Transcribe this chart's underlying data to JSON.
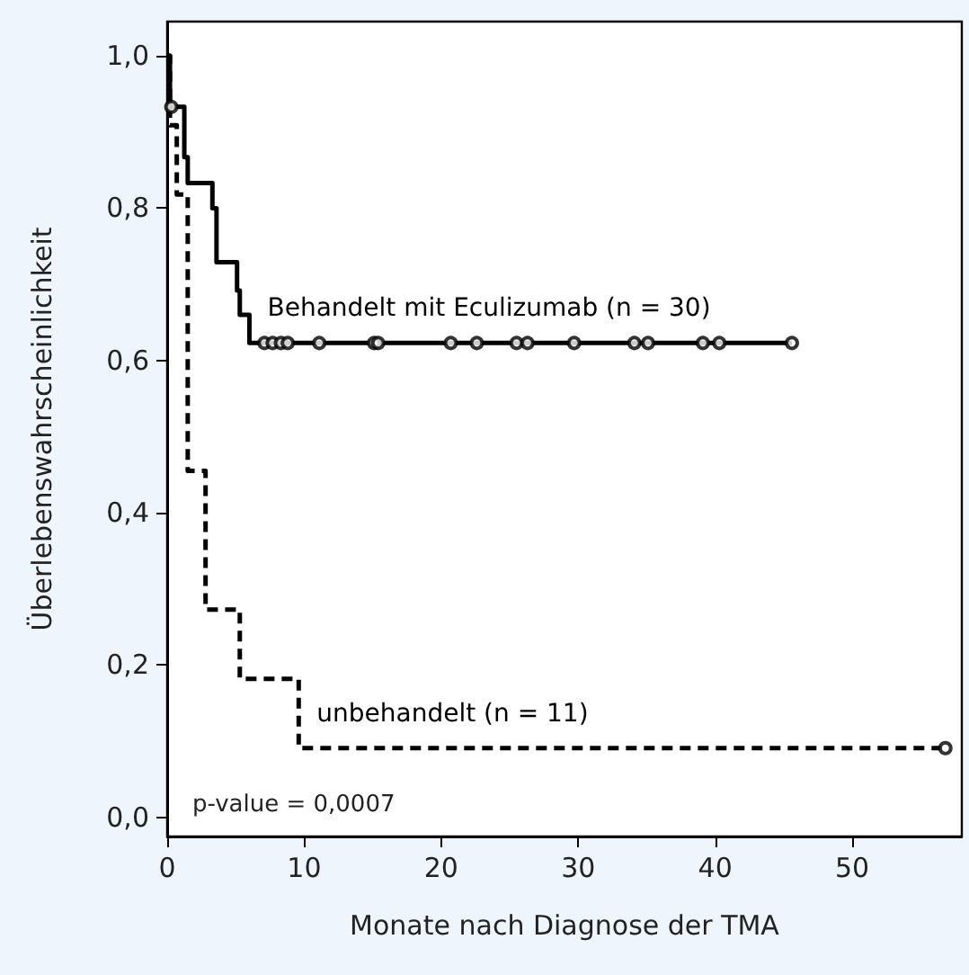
{
  "chart_data": {
    "type": "step",
    "xlabel": "Monate nach Diagnose der TMA",
    "ylabel": "Überlebenswahrscheinlichkeit",
    "xlim": [
      0,
      58
    ],
    "xticks": [
      0,
      10,
      20,
      30,
      40,
      50
    ],
    "ylim": [
      -0.025,
      1.045
    ],
    "yticks": [
      {
        "value": 0,
        "label": "0,0"
      },
      {
        "value": 0.2,
        "label": "0,2"
      },
      {
        "value": 0.4,
        "label": "0,4"
      },
      {
        "value": 0.6,
        "label": "0,6"
      },
      {
        "value": 0.8,
        "label": "0,8"
      },
      {
        "value": 1,
        "label": "1,0"
      }
    ],
    "grid": false,
    "legend": false,
    "annotations": [
      "p-value = 0,0007"
    ],
    "series": [
      {
        "name": "Behandelt mit Eculizumab (n = 30)",
        "color": "#000000",
        "line_style": "solid",
        "x": [
          0,
          0.2,
          1.25,
          1.5,
          3.3,
          3.6,
          5.1,
          5.3,
          6.0,
          45.6
        ],
        "values": [
          1,
          0.933,
          0.867,
          0.833,
          0.8,
          0.729,
          0.692,
          0.66,
          0.623,
          0.623
        ]
      },
      {
        "name": "unbehandelt (n = 11)",
        "color": "#000000",
        "line_style": "dashed",
        "x": [
          0,
          0.2,
          0.7,
          1.5,
          2.8,
          5.3,
          9.6,
          56.8
        ],
        "values": [
          1,
          0.909,
          0.818,
          0.455,
          0.273,
          0.182,
          0.091,
          0.091
        ]
      },
      {
        "type": "scatter",
        "color": "#000000",
        "marker": "circle",
        "x": [
          0.3,
          7.1,
          7.7,
          8.3,
          8.8,
          11.1,
          15.1,
          15.4,
          20.7,
          22.6,
          25.5,
          26.3,
          29.7,
          34.1,
          35.1,
          39.1,
          40.3,
          45.6
        ],
        "values": [
          0.933,
          0.623,
          0.623,
          0.623,
          0.623,
          0.623,
          0.623,
          0.623,
          0.623,
          0.623,
          0.623,
          0.623,
          0.623,
          0.623,
          0.623,
          0.623,
          0.623,
          0.623
        ]
      },
      {
        "type": "scatter",
        "color": "#000000",
        "marker": "circle",
        "x": [
          56.8
        ],
        "values": [
          0.091
        ]
      }
    ]
  }
}
